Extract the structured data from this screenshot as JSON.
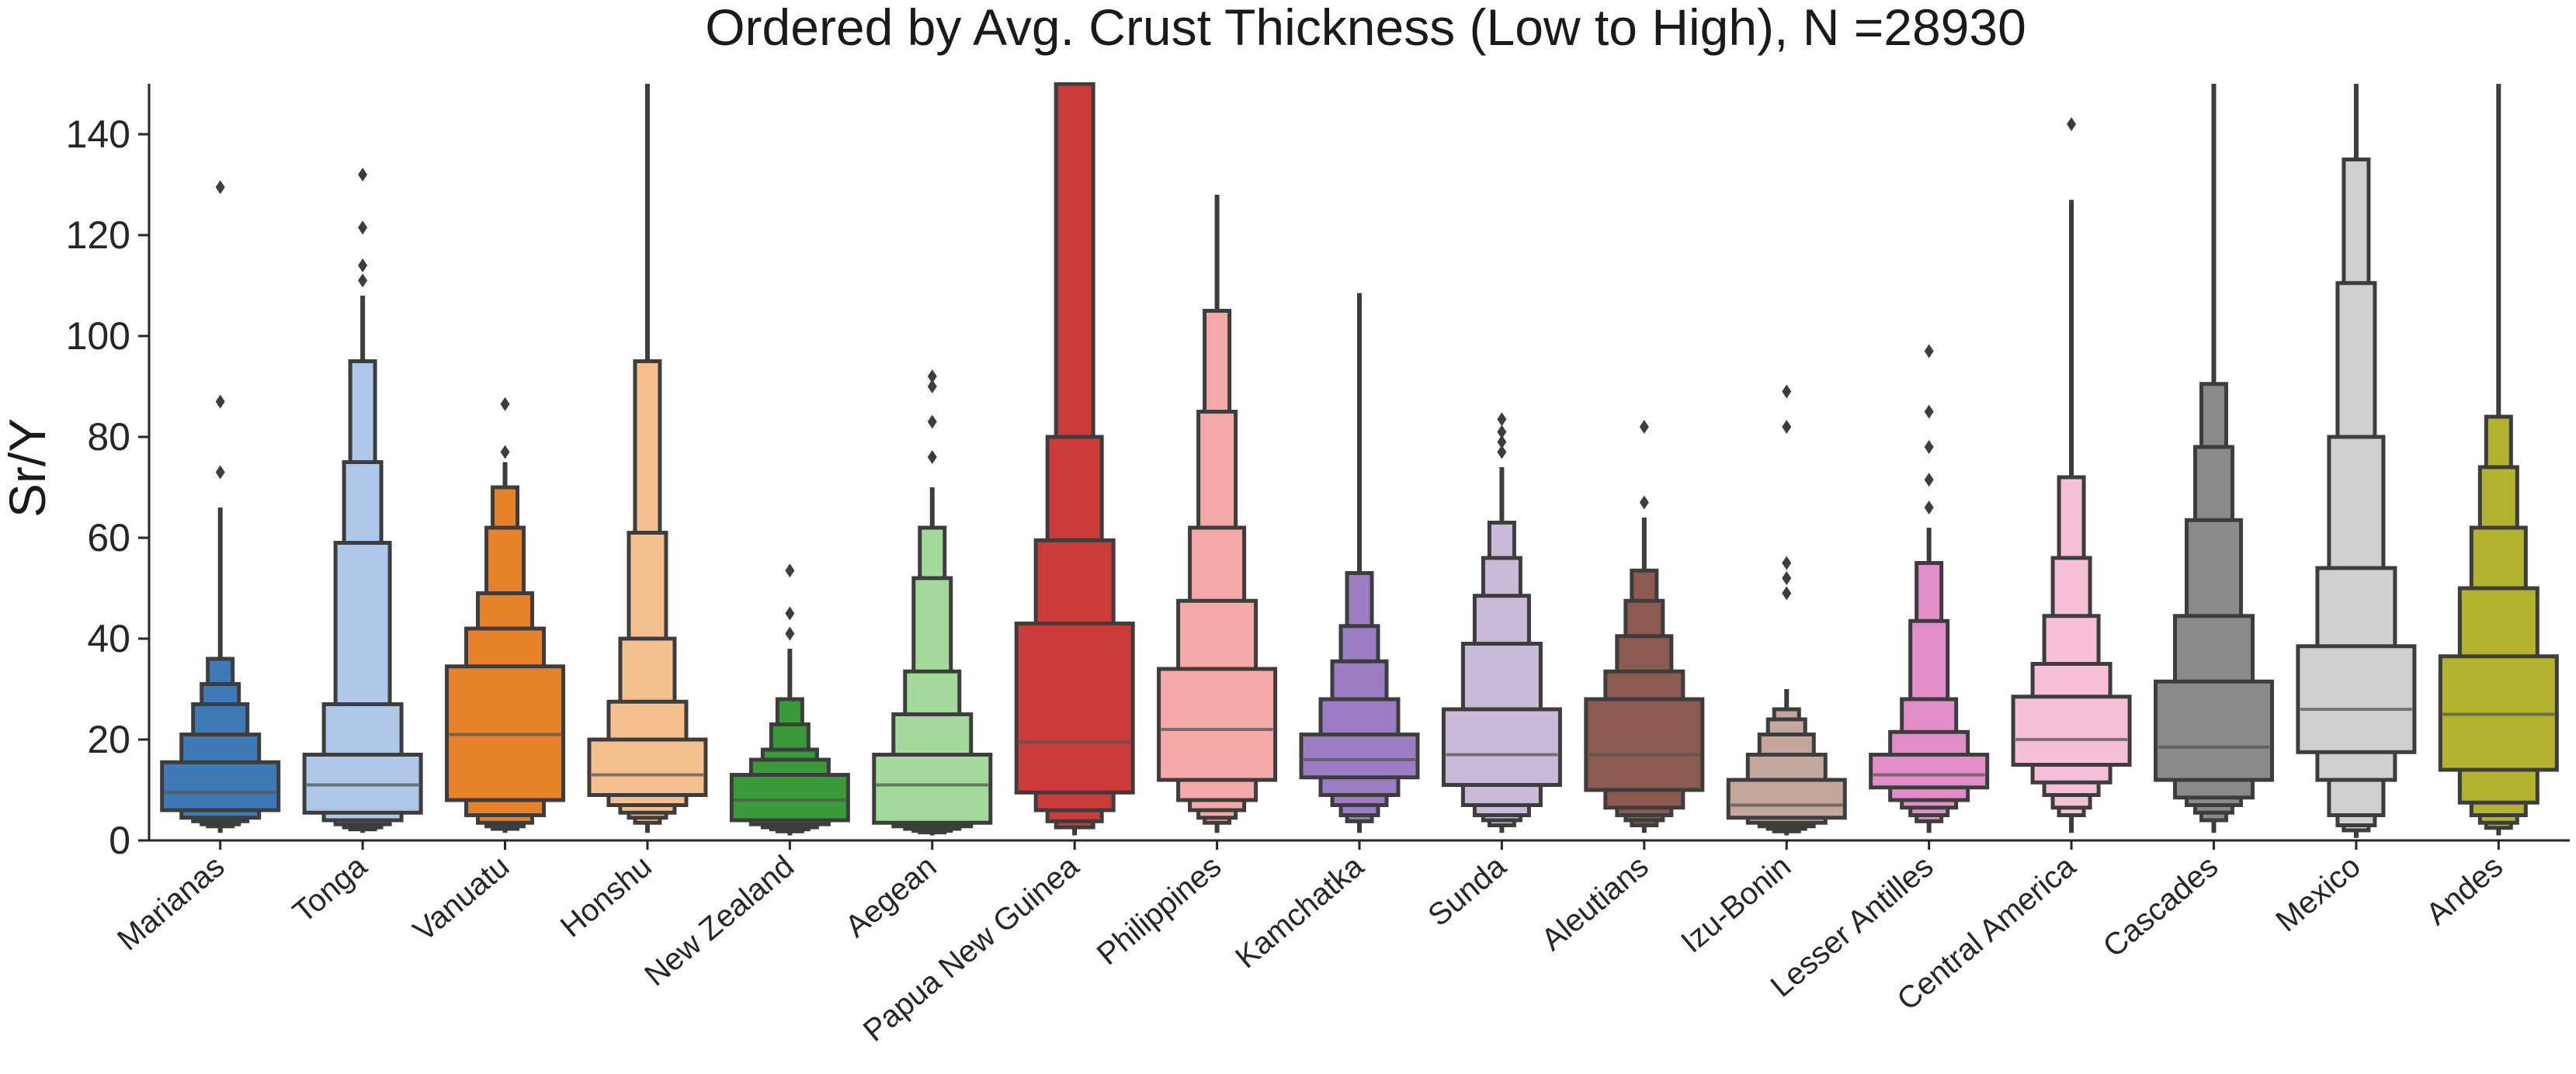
{
  "chart_data": {
    "type": "boxen",
    "title": "Ordered by Avg. Crust Thickness (Low to High), N =28930",
    "xlabel": "",
    "ylabel": "Sr/Y",
    "ylim": [
      0,
      150
    ],
    "yticks": [
      0,
      20,
      40,
      60,
      80,
      100,
      120,
      140
    ],
    "grid": false,
    "legend": "none",
    "categories": [
      "Marianas",
      "Tonga",
      "Vanuatu",
      "Honshu",
      "New Zealand",
      "Aegean",
      "Papua New Guinea",
      "Philippines",
      "Kamchatka",
      "Sunda",
      "Aleutians",
      "Izu-Bonin",
      "Lesser Antilles",
      "Central America",
      "Cascades",
      "Mexico",
      "Andes"
    ],
    "series": [
      {
        "category": "Marianas",
        "color": "#3f7ab8",
        "median": 9.5,
        "boxes": [
          [
            6,
            15.5
          ],
          [
            4.5,
            21
          ],
          [
            3.8,
            27
          ],
          [
            3.2,
            31
          ],
          [
            2.8,
            36
          ]
        ],
        "whisker": [
          1.5,
          66
        ],
        "outliers": [
          73,
          87,
          129.5
        ]
      },
      {
        "category": "Tonga",
        "color": "#aec7e8",
        "median": 11,
        "boxes": [
          [
            5.5,
            17
          ],
          [
            4,
            27
          ],
          [
            3.2,
            59
          ],
          [
            2.6,
            75
          ],
          [
            2.2,
            95
          ]
        ],
        "whisker": [
          1.5,
          108
        ],
        "outliers": [
          111,
          114,
          121.5,
          132
        ]
      },
      {
        "category": "Vanuatu",
        "color": "#e8822a",
        "median": 21,
        "boxes": [
          [
            8,
            34.5
          ],
          [
            5,
            42
          ],
          [
            3.5,
            49
          ],
          [
            2.8,
            62
          ],
          [
            2.3,
            70
          ]
        ],
        "whisker": [
          1.5,
          75
        ],
        "outliers": [
          77,
          86.5
        ]
      },
      {
        "category": "Honshu",
        "color": "#f5c08f",
        "median": 13,
        "boxes": [
          [
            9,
            20
          ],
          [
            7,
            27.5
          ],
          [
            5.5,
            40
          ],
          [
            4.5,
            61
          ],
          [
            3.5,
            95
          ]
        ],
        "whisker": [
          1.5,
          150
        ],
        "outliers": []
      },
      {
        "category": "New Zealand",
        "color": "#3a9a3a",
        "median": 8,
        "boxes": [
          [
            4,
            13
          ],
          [
            3.2,
            16
          ],
          [
            2.6,
            18
          ],
          [
            2.2,
            23
          ],
          [
            1.8,
            28
          ]
        ],
        "whisker": [
          1,
          38
        ],
        "outliers": [
          41,
          45,
          53.5
        ]
      },
      {
        "category": "Aegean",
        "color": "#a3d99a",
        "median": 11,
        "boxes": [
          [
            3.5,
            17
          ],
          [
            2.8,
            25
          ],
          [
            2.3,
            33.5
          ],
          [
            1.9,
            52
          ],
          [
            1.6,
            62
          ]
        ],
        "whisker": [
          1,
          70
        ],
        "outliers": [
          76,
          83,
          90,
          92
        ]
      },
      {
        "category": "Papua New Guinea",
        "color": "#cc3a3a",
        "median": 19.5,
        "boxes": [
          [
            9.5,
            43
          ],
          [
            6,
            59.5
          ],
          [
            3.8,
            80
          ],
          [
            2.6,
            150
          ]
        ],
        "whisker": [
          1,
          150
        ],
        "outliers": []
      },
      {
        "category": "Philippines",
        "color": "#f4a9a8",
        "median": 22,
        "boxes": [
          [
            12,
            34
          ],
          [
            8,
            47.5
          ],
          [
            6,
            62
          ],
          [
            4.5,
            85
          ],
          [
            3.5,
            105
          ]
        ],
        "whisker": [
          1.5,
          128
        ],
        "outliers": []
      },
      {
        "category": "Kamchatka",
        "color": "#9c7cc3",
        "median": 16,
        "boxes": [
          [
            12.5,
            21
          ],
          [
            9,
            28
          ],
          [
            7,
            35.5
          ],
          [
            5,
            42.5
          ],
          [
            3.8,
            53
          ]
        ],
        "whisker": [
          1.5,
          108.5
        ],
        "outliers": []
      },
      {
        "category": "Sunda",
        "color": "#c9bad9",
        "median": 17,
        "boxes": [
          [
            11,
            26
          ],
          [
            7,
            39
          ],
          [
            5,
            48.5
          ],
          [
            4,
            56
          ],
          [
            3,
            63
          ]
        ],
        "whisker": [
          1.5,
          74
        ],
        "outliers": [
          77,
          79,
          81,
          83.5
        ]
      },
      {
        "category": "Aleutians",
        "color": "#8c5a51",
        "median": 17,
        "boxes": [
          [
            10,
            28
          ],
          [
            6.5,
            33.5
          ],
          [
            5,
            40.5
          ],
          [
            4,
            47.5
          ],
          [
            3,
            53.5
          ]
        ],
        "whisker": [
          1.5,
          64
        ],
        "outliers": [
          67,
          82
        ]
      },
      {
        "category": "Izu-Bonin",
        "color": "#c4a79c",
        "median": 7,
        "boxes": [
          [
            4.5,
            12
          ],
          [
            3.5,
            17
          ],
          [
            2.8,
            21
          ],
          [
            2.3,
            24
          ],
          [
            1.8,
            26
          ]
        ],
        "whisker": [
          1,
          30
        ],
        "outliers": [
          49,
          52,
          55,
          82,
          89
        ]
      },
      {
        "category": "Lesser Antilles",
        "color": "#e28dc8",
        "median": 13,
        "boxes": [
          [
            10.5,
            17
          ],
          [
            8,
            21.5
          ],
          [
            6.5,
            28
          ],
          [
            5,
            43.5
          ],
          [
            3.8,
            55
          ]
        ],
        "whisker": [
          1.5,
          62
        ],
        "outliers": [
          66,
          71.5,
          78,
          85,
          97
        ]
      },
      {
        "category": "Central America",
        "color": "#f5bfd8",
        "median": 20,
        "boxes": [
          [
            15,
            28.5
          ],
          [
            11.5,
            35
          ],
          [
            9,
            44.5
          ],
          [
            6.5,
            56
          ],
          [
            5,
            72
          ]
        ],
        "whisker": [
          1.5,
          127
        ],
        "outliers": [
          142
        ]
      },
      {
        "category": "Cascades",
        "color": "#8a8a8a",
        "median": 18.5,
        "boxes": [
          [
            12,
            31.5
          ],
          [
            8.5,
            44.5
          ],
          [
            7,
            63.5
          ],
          [
            5.5,
            78
          ],
          [
            4,
            90.5
          ]
        ],
        "whisker": [
          1.5,
          150
        ],
        "outliers": []
      },
      {
        "category": "Mexico",
        "color": "#cfcfcf",
        "median": 26,
        "boxes": [
          [
            17.5,
            38.5
          ],
          [
            12,
            54
          ],
          [
            5,
            80
          ],
          [
            3,
            110.5
          ],
          [
            2,
            135
          ]
        ],
        "whisker": [
          0.5,
          150
        ],
        "outliers": []
      },
      {
        "category": "Andes",
        "color": "#b3b22e",
        "median": 25,
        "boxes": [
          [
            14,
            36.5
          ],
          [
            7.5,
            50
          ],
          [
            5,
            62
          ],
          [
            3.5,
            74
          ],
          [
            2.5,
            84
          ]
        ],
        "whisker": [
          1,
          150
        ],
        "outliers": []
      }
    ]
  }
}
